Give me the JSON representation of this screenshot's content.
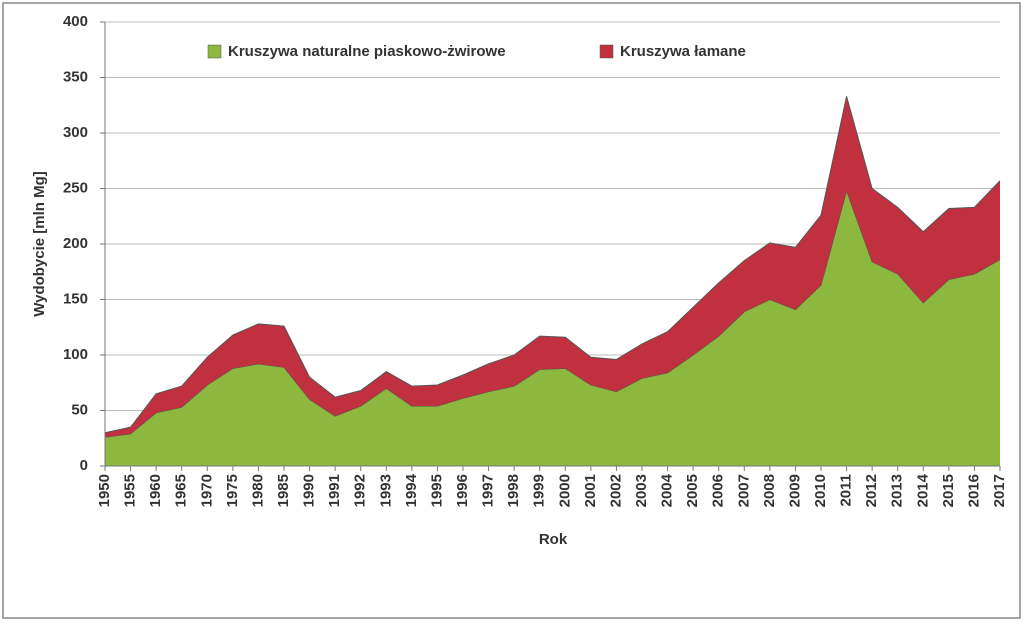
{
  "chart_data": {
    "type": "stacked_area",
    "x_label": "Rok",
    "y_label": "Wydobycie [mln Mg]",
    "categories": [
      "1950",
      "1955",
      "1960",
      "1965",
      "1970",
      "1975",
      "1980",
      "1985",
      "1990",
      "1991",
      "1992",
      "1993",
      "1994",
      "1995",
      "1996",
      "1997",
      "1998",
      "1999",
      "2000",
      "2001",
      "2002",
      "2003",
      "2004",
      "2005",
      "2006",
      "2007",
      "2008",
      "2009",
      "2010",
      "2011",
      "2012",
      "2013",
      "2014",
      "2015",
      "2016",
      "2017"
    ],
    "series": [
      {
        "name": "Kruszywa naturalne piaskowo-żwirowe",
        "color": "#8cb83f",
        "values": [
          26,
          29,
          48,
          53,
          73,
          88,
          92,
          89,
          60,
          45,
          54,
          70,
          54,
          54,
          61,
          67,
          72,
          87,
          88,
          73,
          67,
          79,
          84,
          100,
          117,
          139,
          150,
          141,
          163,
          248,
          184,
          173,
          147,
          168,
          173,
          186
        ]
      },
      {
        "name": "Kruszywa łamane",
        "color": "#c0303e",
        "values": [
          4,
          6,
          17,
          19,
          25,
          30,
          36,
          37,
          20,
          17,
          14,
          15,
          18,
          19,
          21,
          25,
          28,
          30,
          28,
          25,
          29,
          31,
          37,
          43,
          48,
          46,
          51,
          56,
          63,
          85,
          66,
          60,
          64,
          64,
          60,
          71
        ]
      }
    ],
    "ylim": [
      0,
      400
    ],
    "yticks": [
      0,
      50,
      100,
      150,
      200,
      250,
      300,
      350,
      400
    ],
    "grid": true,
    "legend": "top"
  }
}
